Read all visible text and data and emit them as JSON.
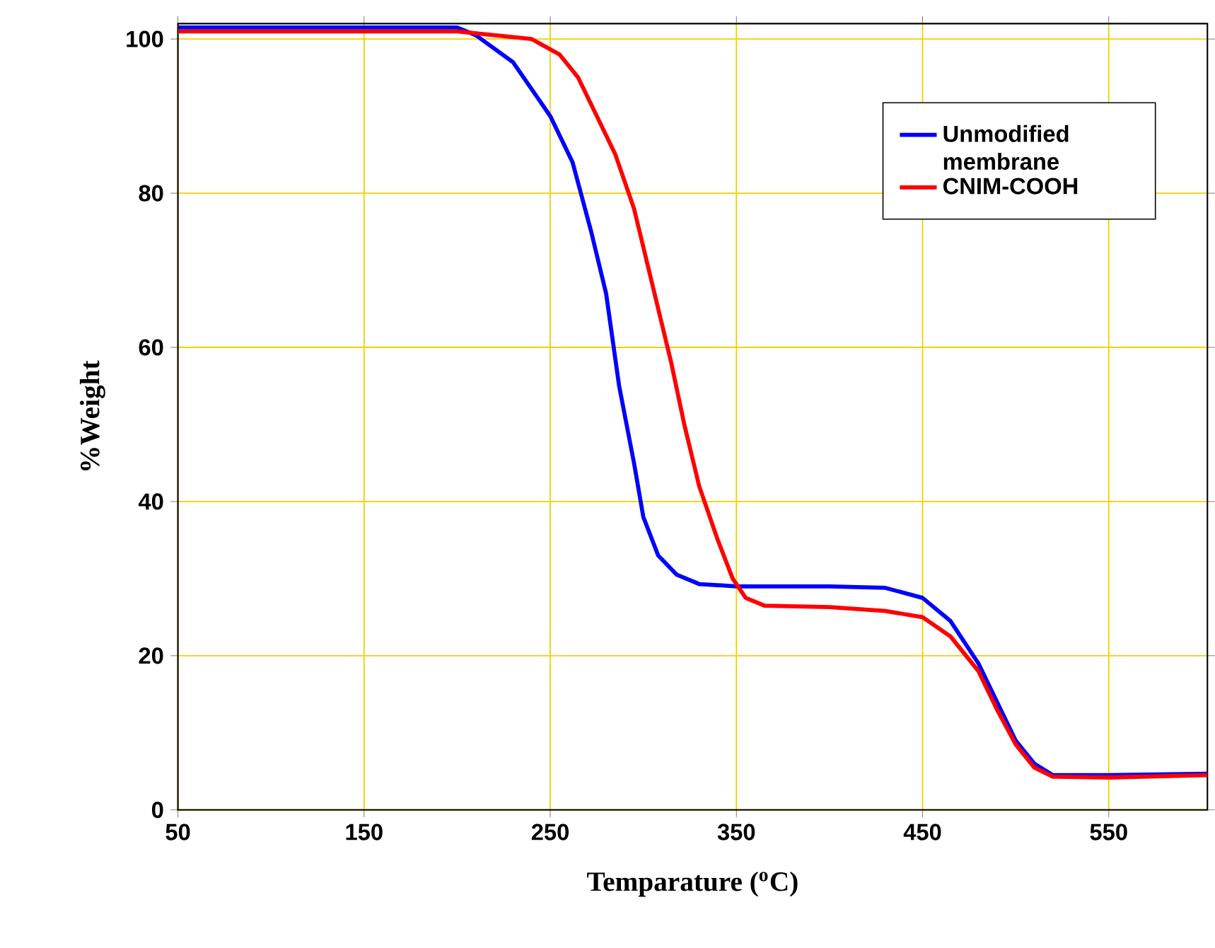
{
  "chart_data": {
    "type": "line",
    "xlabel": "Temparature ($^{o}$C)",
    "ylabel": "%Weight",
    "xlim": [
      50,
      603
    ],
    "ylim": [
      0,
      102
    ],
    "xticks": [
      50,
      150,
      250,
      350,
      450,
      550
    ],
    "yticks": [
      0,
      20,
      40,
      60,
      80,
      100
    ],
    "grid": true,
    "legend": "top right",
    "marker": "none",
    "line_style": "solid",
    "series": [
      {
        "name": "Unmodified membrane",
        "color": "#0000ff",
        "x": [
          50,
          100,
          150,
          200,
          210,
          230,
          250,
          262,
          272,
          280,
          287,
          295,
          300,
          308,
          318,
          330,
          350,
          400,
          430,
          450,
          465,
          480,
          490,
          500,
          510,
          520,
          550,
          603
        ],
        "values": [
          101.5,
          101.5,
          101.5,
          101.5,
          100.5,
          97,
          90,
          84,
          75,
          67,
          55,
          45,
          38,
          33,
          30.5,
          29.3,
          29,
          29,
          28.8,
          27.5,
          24.5,
          19,
          14,
          9,
          6,
          4.5,
          4.5,
          4.7
        ]
      },
      {
        "name": "CNIM-COOH",
        "color": "#ff0000",
        "x": [
          50,
          100,
          150,
          200,
          240,
          255,
          265,
          275,
          285,
          295,
          305,
          315,
          322,
          330,
          340,
          348,
          355,
          365,
          400,
          430,
          450,
          465,
          480,
          490,
          500,
          510,
          520,
          550,
          603
        ],
        "values": [
          101,
          101,
          101,
          101,
          100,
          98,
          95,
          90,
          85,
          78,
          68,
          58,
          50,
          42,
          35,
          30,
          27.5,
          26.5,
          26.3,
          25.8,
          25,
          22.5,
          18,
          13,
          8.5,
          5.5,
          4.3,
          4.2,
          4.5
        ]
      }
    ]
  }
}
